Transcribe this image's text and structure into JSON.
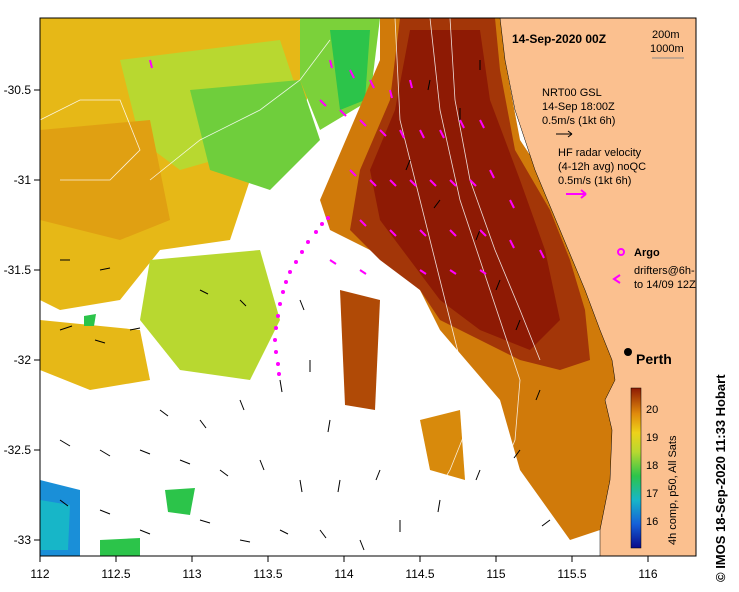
{
  "title": "14-Sep-2020 00Z",
  "depth_legend": {
    "line1": "200m",
    "line2": "1000m"
  },
  "model_legend": {
    "name": "NRT00 GSL",
    "time": "14-Sep 18:00Z",
    "scale": "0.5m/s (1kt 6h)"
  },
  "radar_legend": {
    "line1": "HF radar velocity",
    "line2": "(4-12h avg) noQC",
    "scale": "0.5m/s (1kt 6h)"
  },
  "argo_label": "Argo",
  "drifter_legend": {
    "line1": "drifters@6h-",
    "line2": "to 14/09 12Z"
  },
  "city": "Perth",
  "colorbar": {
    "label": "4h comp, p50, All Sats",
    "ticks": [
      "16",
      "17",
      "18",
      "19",
      "20"
    ]
  },
  "credit": "© IMOS 18-Sep-2020 11:33 Hobart",
  "axes": {
    "x_ticks": [
      "112",
      "112.5",
      "113",
      "113.5",
      "114",
      "114.5",
      "115",
      "115.5",
      "116"
    ],
    "y_ticks": [
      "-30.5",
      "-31",
      "-31.5",
      "-32",
      "-32.5",
      "-33"
    ]
  },
  "colors": {
    "land": "#fbc08f",
    "hot": "#8e1a04",
    "warm": "#d07a0a",
    "mid": "#e6b817",
    "cool": "#a4d436",
    "green": "#2cc44a",
    "magenta": "#ff00ff"
  }
}
